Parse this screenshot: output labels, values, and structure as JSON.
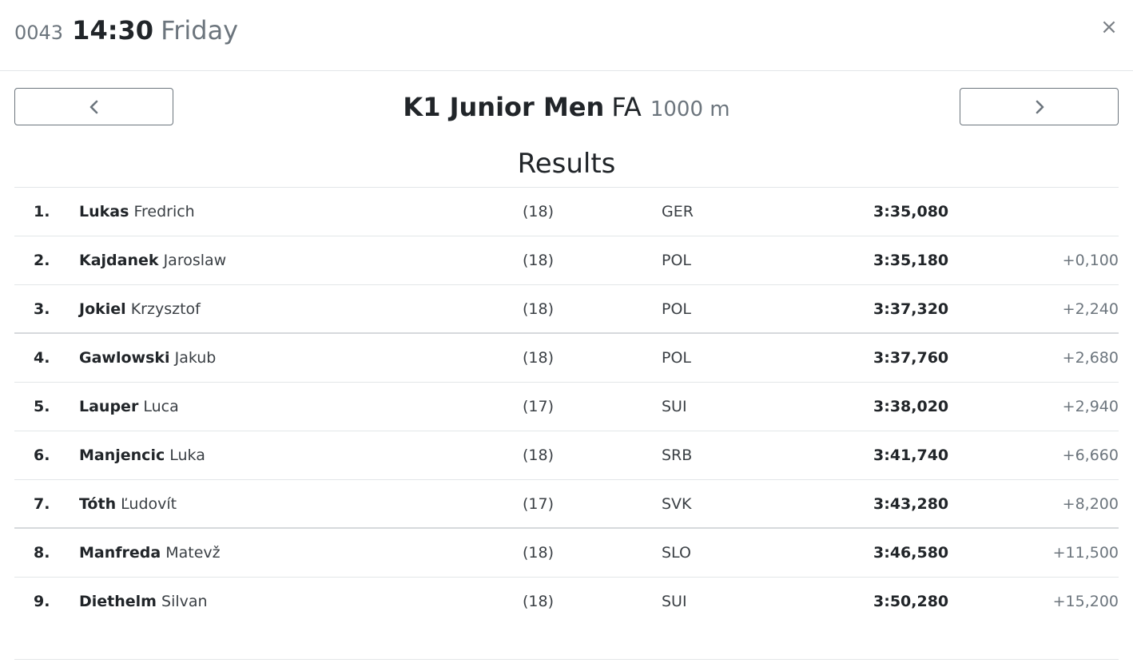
{
  "header": {
    "race_number": "0043",
    "time": "14:30",
    "day": "Friday",
    "close_icon": "close-icon"
  },
  "event": {
    "name": "K1 Junior Men",
    "phase": "FA",
    "distance": "1000 m",
    "prev_icon": "chevron-left-icon",
    "next_icon": "chevron-right-icon"
  },
  "results": {
    "heading": "Results",
    "rows": [
      {
        "rank": "1.",
        "surname": "Lukas",
        "given": "Fredrich",
        "age": "(18)",
        "nation": "GER",
        "time": "3:35,080",
        "gap": ""
      },
      {
        "rank": "2.",
        "surname": "Kajdanek",
        "given": "Jaroslaw",
        "age": "(18)",
        "nation": "POL",
        "time": "3:35,180",
        "gap": "+0,100"
      },
      {
        "rank": "3.",
        "surname": "Jokiel",
        "given": "Krzysztof",
        "age": "(18)",
        "nation": "POL",
        "time": "3:37,320",
        "gap": "+2,240"
      },
      {
        "rank": "4.",
        "surname": "Gawlowski",
        "given": "Jakub",
        "age": "(18)",
        "nation": "POL",
        "time": "3:37,760",
        "gap": "+2,680"
      },
      {
        "rank": "5.",
        "surname": "Lauper",
        "given": "Luca",
        "age": "(17)",
        "nation": "SUI",
        "time": "3:38,020",
        "gap": "+2,940"
      },
      {
        "rank": "6.",
        "surname": "Manjencic",
        "given": "Luka",
        "age": "(18)",
        "nation": "SRB",
        "time": "3:41,740",
        "gap": "+6,660"
      },
      {
        "rank": "7.",
        "surname": "Tóth",
        "given": "Ľudovít",
        "age": "(17)",
        "nation": "SVK",
        "time": "3:43,280",
        "gap": "+8,200"
      },
      {
        "rank": "8.",
        "surname": "Manfreda",
        "given": "Matevž",
        "age": "(18)",
        "nation": "SLO",
        "time": "3:46,580",
        "gap": "+11,500"
      },
      {
        "rank": "9.",
        "surname": "Diethelm",
        "given": "Silvan",
        "age": "(18)",
        "nation": "SUI",
        "time": "3:50,280",
        "gap": "+15,200"
      }
    ]
  }
}
